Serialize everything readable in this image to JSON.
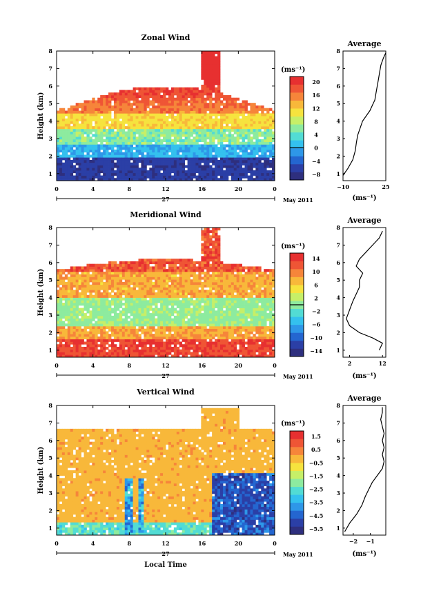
{
  "colors": {
    "scale": [
      "#2e2f7e",
      "#2b3fa6",
      "#2466d0",
      "#2e97e8",
      "#34c1ee",
      "#52dcd4",
      "#8deb9f",
      "#c6ef68",
      "#f6e33e",
      "#f8b83a",
      "#f6853a",
      "#ef5535",
      "#e73030"
    ]
  },
  "chart_data": [
    {
      "type": "heatmap",
      "title": "Zonal Wind",
      "ylabel": "Height (km)",
      "xticks": [
        "0",
        "4",
        "8",
        "12",
        "16",
        "20",
        "0"
      ],
      "yticks": [
        "1",
        "2",
        "3",
        "4",
        "5",
        "6",
        "7",
        "8"
      ],
      "date_label": "27",
      "month_label": "May 2011",
      "ylim": [
        0.6,
        8.0
      ],
      "colorbar": {
        "unit": "(ms⁻¹)",
        "ticks": [
          "20",
          "16",
          "12",
          "8",
          "4",
          "0",
          "−4",
          "−8"
        ],
        "range": [
          -10,
          22
        ],
        "zero_line": 0
      },
      "average": {
        "title": "Average",
        "xticks": [
          "−10",
          "25"
        ],
        "xlim": [
          -10,
          25
        ],
        "unit": "(ms⁻¹)",
        "profile": [
          [
            -10,
            0.9
          ],
          [
            -6,
            1.3
          ],
          [
            -2,
            1.8
          ],
          [
            0,
            2.3
          ],
          [
            1,
            2.8
          ],
          [
            2,
            3.2
          ],
          [
            4,
            3.6
          ],
          [
            6,
            4.0
          ],
          [
            9,
            4.3
          ],
          [
            12,
            4.6
          ],
          [
            14,
            4.9
          ],
          [
            16,
            5.2
          ],
          [
            17,
            5.6
          ],
          [
            18,
            6.0
          ],
          [
            19,
            6.4
          ],
          [
            20,
            6.8
          ],
          [
            21,
            7.2
          ],
          [
            23,
            7.6
          ],
          [
            25,
            7.9
          ]
        ]
      }
    },
    {
      "type": "heatmap",
      "title": "Meridional Wind",
      "ylabel": "Height (km)",
      "xticks": [
        "0",
        "4",
        "8",
        "12",
        "16",
        "20",
        "0"
      ],
      "yticks": [
        "1",
        "2",
        "3",
        "4",
        "5",
        "6",
        "7",
        "8"
      ],
      "date_label": "27",
      "month_label": "May 2011",
      "ylim": [
        0.6,
        8.0
      ],
      "colorbar": {
        "unit": "(ms⁻¹)",
        "ticks": [
          "14",
          "10",
          "6",
          "2",
          "−2",
          "−6",
          "−10",
          "−14"
        ],
        "range": [
          -16,
          16
        ],
        "zero_line": 0
      },
      "average": {
        "title": "Average",
        "xticks": [
          "2",
          "12"
        ],
        "xlim": [
          0,
          13
        ],
        "unit": "(ms⁻¹)",
        "profile": [
          [
            11,
            1.0
          ],
          [
            12,
            1.4
          ],
          [
            9,
            1.7
          ],
          [
            5,
            2.0
          ],
          [
            2,
            2.4
          ],
          [
            1,
            2.8
          ],
          [
            2,
            3.3
          ],
          [
            3,
            3.8
          ],
          [
            4,
            4.2
          ],
          [
            5,
            4.6
          ],
          [
            5,
            5.0
          ],
          [
            6,
            5.4
          ],
          [
            4,
            5.8
          ],
          [
            5,
            6.2
          ],
          [
            7,
            6.6
          ],
          [
            9,
            7.0
          ],
          [
            11,
            7.4
          ],
          [
            12,
            7.8
          ]
        ]
      }
    },
    {
      "type": "heatmap",
      "title": "Vertical Wind",
      "ylabel": "Height (km)",
      "xlabel": "Local Time",
      "xticks": [
        "0",
        "4",
        "8",
        "12",
        "16",
        "20",
        "0"
      ],
      "yticks": [
        "1",
        "2",
        "3",
        "4",
        "5",
        "6",
        "7",
        "8"
      ],
      "date_label": "27",
      "month_label": "May 2011",
      "ylim": [
        0.6,
        8.0
      ],
      "colorbar": {
        "unit": "(ms⁻¹)",
        "ticks": [
          "1.5",
          "0.5",
          "−0.5",
          "−1.5",
          "−2.5",
          "−3.5",
          "−4.5",
          "−5.5"
        ],
        "range": [
          -6,
          2
        ],
        "zero_line": null
      },
      "average": {
        "title": "Average",
        "xticks": [
          "−2",
          "−1"
        ],
        "xlim": [
          -2.6,
          -0.1
        ],
        "unit": "(ms⁻¹)",
        "profile": [
          [
            -2.5,
            0.8
          ],
          [
            -2.2,
            1.3
          ],
          [
            -1.8,
            1.8
          ],
          [
            -1.5,
            2.3
          ],
          [
            -1.3,
            2.8
          ],
          [
            -1.1,
            3.2
          ],
          [
            -0.9,
            3.6
          ],
          [
            -0.6,
            4.0
          ],
          [
            -0.3,
            4.4
          ],
          [
            -0.2,
            4.8
          ],
          [
            -0.3,
            5.2
          ],
          [
            -0.2,
            5.6
          ],
          [
            -0.3,
            6.0
          ],
          [
            -0.2,
            6.4
          ],
          [
            -0.3,
            6.8
          ],
          [
            -0.4,
            7.2
          ],
          [
            -0.3,
            7.6
          ],
          [
            -0.3,
            7.9
          ]
        ]
      }
    }
  ]
}
